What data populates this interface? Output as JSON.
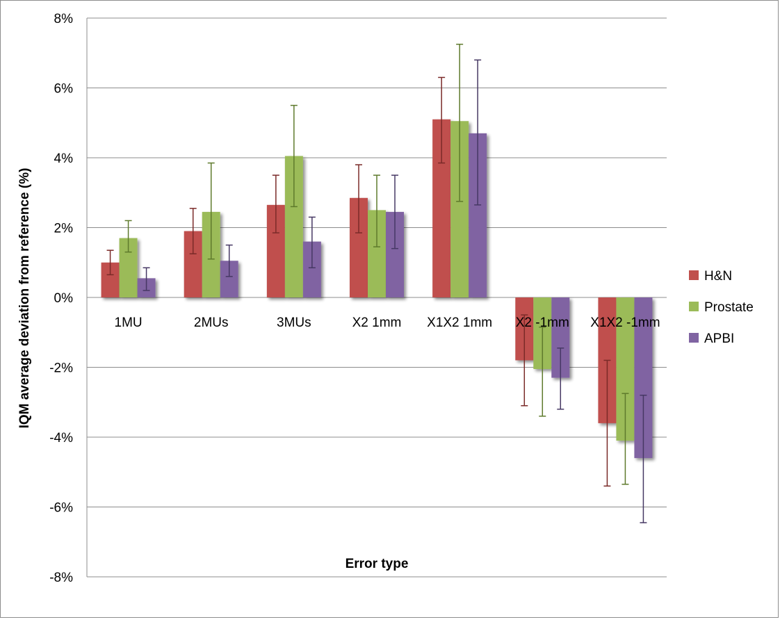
{
  "chart_data": {
    "type": "bar",
    "title": "",
    "xlabel": "Error type",
    "ylabel": "IQM average deviation from reference (%)",
    "ylim": [
      -8,
      8
    ],
    "yticks": [
      -8,
      -6,
      -4,
      -2,
      0,
      2,
      4,
      6,
      8
    ],
    "ytick_labels": [
      "-8%",
      "-6%",
      "-4%",
      "-2%",
      "0%",
      "2%",
      "4%",
      "6%",
      "8%"
    ],
    "grid": true,
    "legend_position": "right",
    "categories": [
      "1MU",
      "2MUs",
      "3MUs",
      "X2 1mm",
      "X1X2 1mm",
      "X2 -1mm",
      "X1X2 -1mm"
    ],
    "series": [
      {
        "name": "H&N",
        "color": "#c0504d",
        "error_color": "#7a2a28",
        "values": [
          1.0,
          1.9,
          2.65,
          2.85,
          5.1,
          -1.8,
          -3.6
        ],
        "err_low": [
          0.65,
          1.25,
          1.85,
          1.85,
          3.85,
          -3.1,
          -5.4
        ],
        "err_high": [
          1.35,
          2.55,
          3.5,
          3.8,
          6.3,
          -0.5,
          -1.8
        ]
      },
      {
        "name": "Prostate",
        "color": "#9bbb59",
        "error_color": "#5e7a2c",
        "values": [
          1.7,
          2.45,
          4.05,
          2.5,
          5.05,
          -2.05,
          -4.1
        ],
        "err_low": [
          1.3,
          1.1,
          2.6,
          1.45,
          2.75,
          -3.4,
          -5.35
        ],
        "err_high": [
          2.2,
          3.85,
          5.5,
          3.5,
          7.25,
          -0.85,
          -2.75
        ]
      },
      {
        "name": "APBI",
        "color": "#8064a2",
        "error_color": "#463864",
        "values": [
          0.55,
          1.05,
          1.6,
          2.45,
          4.7,
          -2.3,
          -4.6
        ],
        "err_low": [
          0.2,
          0.6,
          0.85,
          1.4,
          2.65,
          -3.2,
          -6.45
        ],
        "err_high": [
          0.85,
          1.5,
          2.3,
          3.5,
          6.8,
          -1.45,
          -2.8
        ]
      }
    ]
  }
}
